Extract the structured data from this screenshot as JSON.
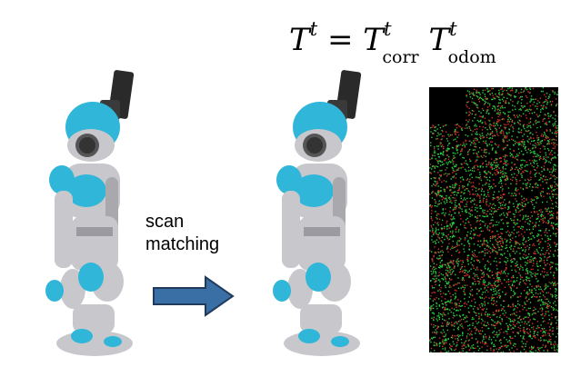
{
  "label": {
    "line1": "scan",
    "line2": "matching"
  },
  "equation": {
    "lhs": "T",
    "lhs_sup": "t",
    "eq": " = ",
    "t1": "T",
    "t1_sup": "t",
    "t1_sub": "corr",
    "t2": "T",
    "t2_sup": "t",
    "t2_sub": "odom"
  },
  "colors": {
    "arrow_fill": "#3a6fa6",
    "arrow_stroke": "#1f3a5a",
    "robot_blue": "#2fb6d8",
    "robot_gray": "#c8c8cc",
    "scan_green": "#2ecc40",
    "scan_red": "#d0302a"
  }
}
